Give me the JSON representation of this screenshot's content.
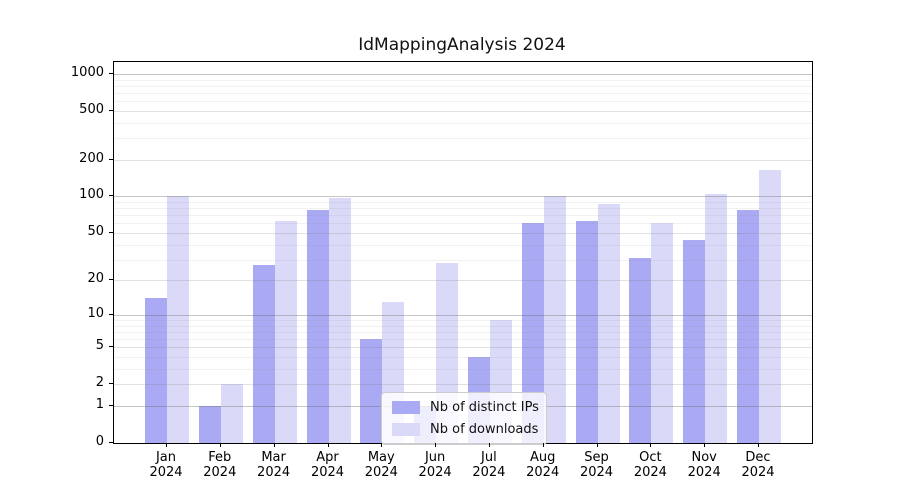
{
  "title": "IdMappingAnalysis 2024",
  "chart_data": {
    "type": "bar",
    "title": "IdMappingAnalysis 2024",
    "categories": [
      "Jan 2024",
      "Feb 2024",
      "Mar 2024",
      "Apr 2024",
      "May 2024",
      "Jun 2024",
      "Jul 2024",
      "Aug 2024",
      "Sep 2024",
      "Oct 2024",
      "Nov 2024",
      "Dec 2024"
    ],
    "months": [
      "Jan",
      "Feb",
      "Mar",
      "Apr",
      "May",
      "Jun",
      "Jul",
      "Aug",
      "Sep",
      "Oct",
      "Nov",
      "Dec"
    ],
    "year": "2024",
    "series": [
      {
        "name": "Nb of distinct IPs",
        "color": "#a9a9f4",
        "values": [
          14,
          1,
          27,
          77,
          6,
          1,
          4,
          60,
          63,
          31,
          44,
          77
        ]
      },
      {
        "name": "Nb of downloads",
        "color": "#dadaf8",
        "values": [
          100,
          2,
          63,
          97,
          13,
          28,
          9,
          100,
          86,
          60,
          105,
          165
        ]
      }
    ],
    "xlabel": "",
    "ylabel": "",
    "yscale": "log10(value+1)",
    "yticks": [
      0,
      1,
      2,
      5,
      10,
      20,
      50,
      100,
      200,
      500,
      1000
    ],
    "ylim": [
      0,
      1250
    ],
    "grid": true,
    "legend_location": "lower-center-inside"
  }
}
